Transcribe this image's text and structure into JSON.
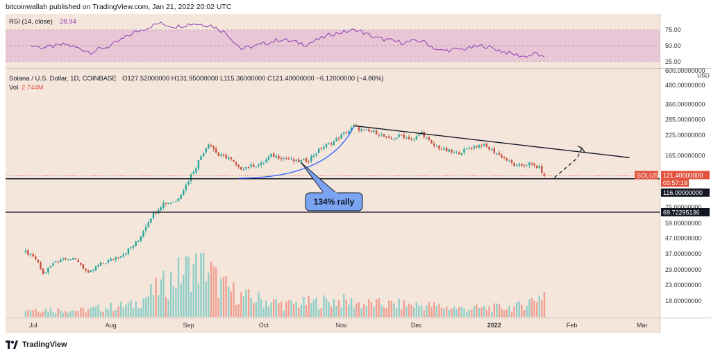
{
  "header": {
    "published_text": "bitcoinwallah published on TradingView.com, Jan 21, 2022 20:02 UTC"
  },
  "footer": {
    "brand": "TradingView",
    "logo_icon": "tradingview-logo-icon"
  },
  "colors": {
    "background": "#f5e6dc",
    "rsi_band": "#e8c6d6",
    "rsi_line": "#8e3fb3",
    "up": "#26a69a",
    "up_vol": "#8fcfc8",
    "down": "#c8503d",
    "down_vol": "#f0a093",
    "label_red": "#e2533f",
    "callout_fill": "#7aa3f2",
    "curve": "#2962ff"
  },
  "rsi_pane": {
    "legend_name": "RSI (14, close)",
    "legend_value": "28.94",
    "levels": [
      "75.00",
      "50.00",
      "25.00"
    ]
  },
  "price_pane": {
    "legend_symbol": "Solana / U.S. Dollar, 1D, COINBASE",
    "legend_ohlc": "O127.52000000  H131.95000000  L115.36000000  C121.40000000  −6.12000000 (−4.80%)",
    "vol_label": "Vol",
    "vol_value": "2.744M",
    "currency": "USD",
    "y_ticks": [
      "600.00000000",
      "480.00000000",
      "360.00000000",
      "285.00000000",
      "225.00000000",
      "165.00000000",
      "75.00000000",
      "59.00000000",
      "47.00000000",
      "37.00000000",
      "29.00000000",
      "23.00000000",
      "18.00000000"
    ],
    "ticker_badge": "SOLUSD",
    "price_badge": "121.40000000",
    "countdown_badge": "03:57:19",
    "support_badge": "116.00000000",
    "lower_support_badge": "69.72295136",
    "callout_text": "134% rally"
  },
  "x_ticks": [
    "Jul",
    "Aug",
    "Sep",
    "Oct",
    "Nov",
    "Dec",
    "2022",
    "Feb",
    "Mar"
  ],
  "chart_data": {
    "type": "candlestick",
    "title": "Solana / U.S. Dollar, 1D, COINBASE",
    "scale": "log",
    "ylim": [
      14,
      620
    ],
    "x_range": [
      "2021-06-20",
      "2022-03-08"
    ],
    "x_ticks": [
      "2021-07-01",
      "2021-08-01",
      "2021-09-01",
      "2021-10-01",
      "2021-11-01",
      "2021-12-01",
      "2022-01-01",
      "2022-02-01",
      "2022-03-01"
    ],
    "price_waypoints": [
      [
        "2021-06-28",
        38
      ],
      [
        "2021-07-02",
        34
      ],
      [
        "2021-07-05",
        27
      ],
      [
        "2021-07-10",
        33
      ],
      [
        "2021-07-14",
        35
      ],
      [
        "2021-07-19",
        33
      ],
      [
        "2021-07-23",
        27
      ],
      [
        "2021-07-27",
        31
      ],
      [
        "2021-08-03",
        35
      ],
      [
        "2021-08-07",
        38
      ],
      [
        "2021-08-12",
        45
      ],
      [
        "2021-08-17",
        65
      ],
      [
        "2021-08-22",
        80
      ],
      [
        "2021-08-27",
        82
      ],
      [
        "2021-08-31",
        105
      ],
      [
        "2021-09-04",
        140
      ],
      [
        "2021-09-09",
        200
      ],
      [
        "2021-09-13",
        165
      ],
      [
        "2021-09-17",
        160
      ],
      [
        "2021-09-21",
        135
      ],
      [
        "2021-09-25",
        140
      ],
      [
        "2021-09-30",
        145
      ],
      [
        "2021-10-04",
        165
      ],
      [
        "2021-10-09",
        160
      ],
      [
        "2021-10-14",
        150
      ],
      [
        "2021-10-19",
        155
      ],
      [
        "2021-10-24",
        185
      ],
      [
        "2021-10-29",
        205
      ],
      [
        "2021-11-06",
        255
      ],
      [
        "2021-11-10",
        240
      ],
      [
        "2021-11-15",
        235
      ],
      [
        "2021-11-20",
        210
      ],
      [
        "2021-11-25",
        225
      ],
      [
        "2021-11-30",
        210
      ],
      [
        "2021-12-03",
        235
      ],
      [
        "2021-12-07",
        195
      ],
      [
        "2021-12-12",
        180
      ],
      [
        "2021-12-17",
        170
      ],
      [
        "2021-12-22",
        185
      ],
      [
        "2021-12-27",
        195
      ],
      [
        "2022-01-01",
        175
      ],
      [
        "2022-01-07",
        150
      ],
      [
        "2022-01-10",
        140
      ],
      [
        "2022-01-15",
        145
      ],
      [
        "2022-01-19",
        137
      ],
      [
        "2022-01-21",
        121.4
      ]
    ],
    "volume_peaks_m": [
      [
        "2021-06-28",
        1.0
      ],
      [
        "2021-07-20",
        0.8
      ],
      [
        "2021-08-10",
        1.5
      ],
      [
        "2021-08-18",
        3.0
      ],
      [
        "2021-08-30",
        5.5
      ],
      [
        "2021-09-07",
        6.6
      ],
      [
        "2021-09-13",
        4.0
      ],
      [
        "2021-09-22",
        2.5
      ],
      [
        "2021-10-10",
        1.5
      ],
      [
        "2021-10-30",
        2.0
      ],
      [
        "2021-11-10",
        1.6
      ],
      [
        "2021-12-05",
        1.4
      ],
      [
        "2021-12-20",
        1.0
      ],
      [
        "2022-01-10",
        1.2
      ],
      [
        "2022-01-21",
        2.744
      ]
    ],
    "last_close": 121.4,
    "annotations": {
      "support_level": 116.0,
      "lower_support_level": 69.72295136,
      "descending_trendline": [
        [
          "2021-11-06",
          260
        ],
        [
          "2022-02-24",
          160
        ]
      ],
      "rally_curve": [
        [
          "2021-09-21",
          117
        ],
        [
          "2021-11-06",
          258
        ]
      ],
      "rally_label": "134% rally",
      "projection_path": [
        [
          "2022-01-25",
          118
        ],
        [
          "2022-02-03",
          158
        ],
        [
          "2022-02-05",
          185
        ]
      ]
    },
    "rsi": {
      "name": "RSI (14, close)",
      "last": 28.94,
      "band": [
        25,
        75
      ],
      "ylim": [
        15,
        100
      ],
      "waypoints": [
        [
          "2021-06-30",
          50
        ],
        [
          "2021-07-06",
          47
        ],
        [
          "2021-07-14",
          52
        ],
        [
          "2021-07-24",
          40
        ],
        [
          "2021-08-01",
          50
        ],
        [
          "2021-08-10",
          70
        ],
        [
          "2021-08-20",
          85
        ],
        [
          "2021-08-27",
          80
        ],
        [
          "2021-09-03",
          85
        ],
        [
          "2021-09-10",
          82
        ],
        [
          "2021-09-16",
          70
        ],
        [
          "2021-09-22",
          45
        ],
        [
          "2021-09-28",
          50
        ],
        [
          "2021-10-08",
          60
        ],
        [
          "2021-10-18",
          52
        ],
        [
          "2021-10-28",
          68
        ],
        [
          "2021-11-07",
          75
        ],
        [
          "2021-11-15",
          62
        ],
        [
          "2021-11-25",
          55
        ],
        [
          "2021-12-03",
          58
        ],
        [
          "2021-12-10",
          42
        ],
        [
          "2021-12-20",
          45
        ],
        [
          "2021-12-28",
          50
        ],
        [
          "2022-01-07",
          38
        ],
        [
          "2022-01-13",
          33
        ],
        [
          "2022-01-18",
          38
        ],
        [
          "2022-01-21",
          28.94
        ]
      ]
    }
  }
}
